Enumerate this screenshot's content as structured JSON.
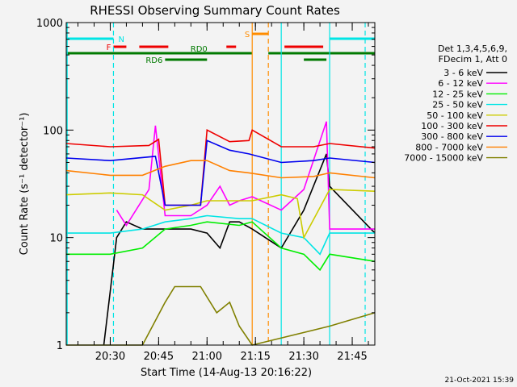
{
  "chart_data": {
    "type": "line",
    "title": "RHESSI Observing Summary Count Rates",
    "xlabel": "Start Time (14-Aug-13 20:16:22)",
    "ylabel": "Count Rate (s⁻¹ detector⁻¹)",
    "y_scale": "log",
    "ylim": [
      1,
      1000
    ],
    "xlim": [
      "20:16:22",
      "21:52:00"
    ],
    "x_ticks": [
      "20:30",
      "20:45",
      "21:00",
      "21:15",
      "21:30",
      "21:45"
    ],
    "y_ticks": [
      "1",
      "10",
      "100",
      "1000"
    ],
    "legend_header": [
      "Det 1,3,4,5,6,9,",
      "FDecim 1, Att 0"
    ],
    "legend_position": "right",
    "timestamp": "21-Oct-2021 15:39",
    "flag_labels": {
      "N": "N",
      "F": "F",
      "S": "S",
      "RD0": "RD0",
      "RD6": "RD6"
    },
    "flag_colors": {
      "N": "#00e5e5",
      "F": "#ee0000",
      "S": "#ff8c00",
      "RD0": "#007a00",
      "RD6": "#007a00"
    },
    "flags": {
      "N": [
        [
          "20:16:22",
          "20:31:00"
        ],
        [
          "21:38:00",
          "21:52:00"
        ]
      ],
      "F": [
        [
          "20:31:00",
          "20:35:00"
        ],
        [
          "20:39:00",
          "20:48:00"
        ],
        [
          "21:06:00",
          "21:09:00"
        ],
        [
          "21:24:00",
          "21:36:00"
        ]
      ],
      "S": [
        [
          "21:14:00",
          "21:19:00"
        ]
      ],
      "RD0": [
        [
          "20:16:22",
          "21:14:00"
        ],
        [
          "21:19:00",
          "21:52:00"
        ]
      ],
      "RD6": [
        [
          "20:47:00",
          "21:00:00"
        ],
        [
          "21:30:00",
          "21:37:00"
        ]
      ]
    },
    "markers": {
      "cyan_dashed": [
        "20:31:00",
        "21:49:00"
      ],
      "cyan_solid": [
        "20:16:40",
        "21:23:00",
        "21:38:00"
      ],
      "orange_dashed": [
        "21:19:00"
      ],
      "orange_solid": [
        "21:14:00"
      ]
    },
    "gaps": [
      [
        "21:15:00",
        "21:23:00"
      ]
    ],
    "series": [
      {
        "name": "3 - 6 keV",
        "color": "#000000",
        "points": [
          [
            "20:28",
            1
          ],
          [
            "20:32",
            10
          ],
          [
            "20:35",
            14
          ],
          [
            "20:40",
            12
          ],
          [
            "20:47",
            12
          ],
          [
            "20:55",
            12
          ],
          [
            "21:00",
            11
          ],
          [
            "21:04",
            8
          ],
          [
            "21:07",
            14
          ],
          [
            "21:10",
            14
          ],
          [
            "21:14",
            12
          ],
          [
            "21:23",
            8
          ],
          [
            "21:30",
            18
          ],
          [
            "21:37",
            60
          ],
          [
            "21:38",
            30
          ],
          [
            "21:52",
            11
          ]
        ]
      },
      {
        "name": "6 - 12 keV",
        "color": "#ff00ff",
        "points": [
          [
            "20:32",
            18
          ],
          [
            "20:35",
            13
          ],
          [
            "20:42",
            28
          ],
          [
            "20:44",
            110
          ],
          [
            "20:47",
            16
          ],
          [
            "20:55",
            16
          ],
          [
            "21:00",
            20
          ],
          [
            "21:04",
            30
          ],
          [
            "21:07",
            20
          ],
          [
            "21:10",
            22
          ],
          [
            "21:14",
            24
          ],
          [
            "21:23",
            18
          ],
          [
            "21:30",
            28
          ],
          [
            "21:37",
            120
          ],
          [
            "21:38",
            12
          ],
          [
            "21:52",
            12
          ]
        ]
      },
      {
        "name": "12 - 25 keV",
        "color": "#00ee00",
        "points": [
          [
            "20:16:22",
            7
          ],
          [
            "20:30",
            7
          ],
          [
            "20:40",
            8
          ],
          [
            "20:47",
            12
          ],
          [
            "20:55",
            13
          ],
          [
            "21:00",
            14
          ],
          [
            "21:10",
            13
          ],
          [
            "21:14",
            14
          ],
          [
            "21:23",
            8
          ],
          [
            "21:30",
            7
          ],
          [
            "21:35",
            5
          ],
          [
            "21:38",
            7
          ],
          [
            "21:52",
            6
          ]
        ]
      },
      {
        "name": "25 - 50 keV",
        "color": "#00e5e5",
        "points": [
          [
            "20:16:22",
            11
          ],
          [
            "20:30",
            11
          ],
          [
            "20:40",
            12
          ],
          [
            "20:47",
            14
          ],
          [
            "20:55",
            15
          ],
          [
            "21:00",
            16
          ],
          [
            "21:10",
            15
          ],
          [
            "21:14",
            15
          ],
          [
            "21:23",
            11
          ],
          [
            "21:30",
            10
          ],
          [
            "21:35",
            7
          ],
          [
            "21:38",
            11
          ],
          [
            "21:52",
            11
          ]
        ]
      },
      {
        "name": "50 - 100 keV",
        "color": "#cccc00",
        "points": [
          [
            "20:16:22",
            25
          ],
          [
            "20:30",
            26
          ],
          [
            "20:40",
            25
          ],
          [
            "20:47",
            18
          ],
          [
            "20:55",
            20
          ],
          [
            "21:00",
            22
          ],
          [
            "21:10",
            22
          ],
          [
            "21:14",
            22
          ],
          [
            "21:23",
            25
          ],
          [
            "21:28",
            23
          ],
          [
            "21:30",
            10
          ],
          [
            "21:38",
            28
          ],
          [
            "21:52",
            27
          ]
        ]
      },
      {
        "name": "100 - 300 keV",
        "color": "#ee0000",
        "points": [
          [
            "20:16:22",
            75
          ],
          [
            "20:30",
            70
          ],
          [
            "20:42",
            72
          ],
          [
            "20:45",
            82
          ],
          [
            "20:47",
            20
          ],
          [
            "20:58",
            20
          ],
          [
            "21:00",
            100
          ],
          [
            "21:07",
            78
          ],
          [
            "21:13",
            80
          ],
          [
            "21:14",
            100
          ],
          [
            "21:23",
            70
          ],
          [
            "21:33",
            70
          ],
          [
            "21:38",
            75
          ],
          [
            "21:52",
            68
          ]
        ]
      },
      {
        "name": "300 - 800 keV",
        "color": "#0000ee",
        "points": [
          [
            "20:16:22",
            55
          ],
          [
            "20:30",
            52
          ],
          [
            "20:44",
            57
          ],
          [
            "20:47",
            20
          ],
          [
            "20:58",
            20
          ],
          [
            "21:00",
            80
          ],
          [
            "21:07",
            65
          ],
          [
            "21:13",
            60
          ],
          [
            "21:23",
            50
          ],
          [
            "21:33",
            52
          ],
          [
            "21:38",
            55
          ],
          [
            "21:52",
            50
          ]
        ]
      },
      {
        "name": "800 - 7000 keV",
        "color": "#ff8000",
        "points": [
          [
            "20:16:22",
            42
          ],
          [
            "20:30",
            38
          ],
          [
            "20:40",
            38
          ],
          [
            "20:47",
            46
          ],
          [
            "20:55",
            52
          ],
          [
            "21:00",
            52
          ],
          [
            "21:07",
            42
          ],
          [
            "21:13",
            40
          ],
          [
            "21:23",
            36
          ],
          [
            "21:33",
            37
          ],
          [
            "21:38",
            40
          ],
          [
            "21:52",
            36
          ]
        ]
      },
      {
        "name": "7000 - 15000 keV",
        "color": "#808000",
        "points": [
          [
            "20:16:22",
            1
          ],
          [
            "20:40",
            1
          ],
          [
            "20:47",
            2.5
          ],
          [
            "20:50",
            3.5
          ],
          [
            "20:58",
            3.5
          ],
          [
            "21:03",
            2
          ],
          [
            "21:07",
            2.5
          ],
          [
            "21:10",
            1.5
          ],
          [
            "21:14",
            1
          ],
          [
            "21:38",
            1.5
          ],
          [
            "21:52",
            2
          ]
        ]
      }
    ]
  }
}
